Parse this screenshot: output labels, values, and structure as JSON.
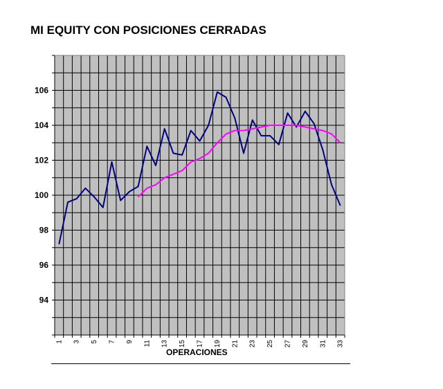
{
  "chart_data": {
    "type": "line",
    "title": "MI EQUITY CON POSICIONES CERRADAS",
    "xlabel": "OPERACIONES",
    "ylabel": "",
    "x": [
      1,
      2,
      3,
      4,
      5,
      6,
      7,
      8,
      9,
      10,
      11,
      12,
      13,
      14,
      15,
      16,
      17,
      18,
      19,
      20,
      21,
      22,
      23,
      24,
      25,
      26,
      27,
      28,
      29,
      30,
      31,
      32,
      33
    ],
    "x_ticks": [
      1,
      3,
      5,
      7,
      9,
      11,
      13,
      15,
      17,
      19,
      21,
      23,
      25,
      27,
      29,
      31,
      33
    ],
    "y_ticks": [
      94,
      96,
      98,
      100,
      102,
      104,
      106
    ],
    "ylim": [
      92,
      108
    ],
    "grid": true,
    "legend": "none",
    "colors": {
      "plot_bg": "#c0c0c0",
      "grid": "#000000",
      "series_equity": "#000080",
      "series_average": "#ff00ff"
    },
    "series": [
      {
        "values": [
          97.2,
          99.6,
          99.8,
          100.4,
          99.9,
          99.3,
          101.9,
          99.7,
          100.2,
          100.5,
          102.8,
          101.7,
          103.8,
          102.4,
          102.3,
          103.7,
          103.1,
          104.0,
          105.9,
          105.6,
          104.4,
          102.4,
          104.3,
          103.4,
          103.4,
          102.9,
          104.7,
          103.9,
          104.8,
          104.1,
          102.6,
          100.6,
          99.4
        ]
      },
      {
        "values": [
          null,
          null,
          null,
          null,
          null,
          null,
          null,
          null,
          null,
          99.9,
          100.4,
          100.6,
          101.0,
          101.2,
          101.4,
          101.9,
          102.1,
          102.4,
          103.0,
          103.5,
          103.7,
          103.7,
          103.8,
          103.9,
          104.0,
          104.0,
          104.0,
          104.0,
          103.9,
          103.8,
          103.7,
          103.5,
          103.0
        ]
      }
    ]
  }
}
